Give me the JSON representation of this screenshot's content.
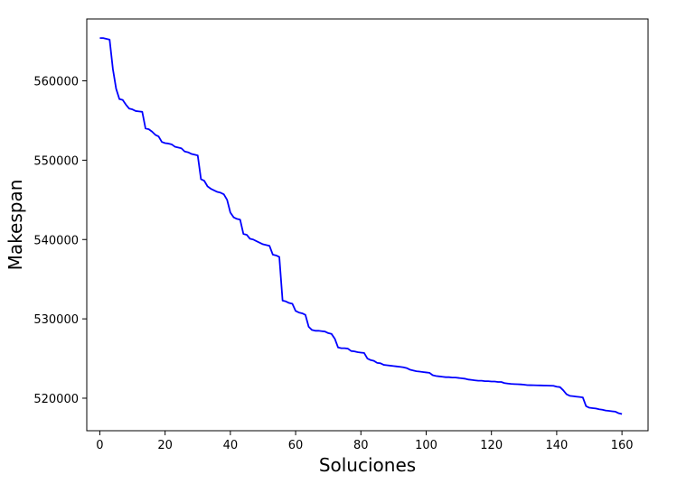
{
  "chart_data": {
    "type": "line",
    "title": "",
    "xlabel": "Soluciones",
    "ylabel": "Makespan",
    "xlim": [
      -4,
      168
    ],
    "ylim": [
      515900,
      567800
    ],
    "xticks": [
      0,
      20,
      40,
      60,
      80,
      100,
      120,
      140,
      160
    ],
    "yticks": [
      520000,
      530000,
      540000,
      550000,
      560000
    ],
    "grid": false,
    "series": [
      {
        "color": "#0000ff",
        "points": [
          [
            0,
            565400
          ],
          [
            1,
            565400
          ],
          [
            2,
            565300
          ],
          [
            3,
            565200
          ],
          [
            4,
            561500
          ],
          [
            5,
            559000
          ],
          [
            6,
            557700
          ],
          [
            7,
            557600
          ],
          [
            8,
            557000
          ],
          [
            9,
            556500
          ],
          [
            10,
            556400
          ],
          [
            11,
            556200
          ],
          [
            12,
            556150
          ],
          [
            13,
            556100
          ],
          [
            14,
            554000
          ],
          [
            15,
            553900
          ],
          [
            16,
            553600
          ],
          [
            17,
            553200
          ],
          [
            18,
            553000
          ],
          [
            19,
            552300
          ],
          [
            20,
            552150
          ],
          [
            21,
            552100
          ],
          [
            22,
            552000
          ],
          [
            23,
            551700
          ],
          [
            24,
            551600
          ],
          [
            25,
            551500
          ],
          [
            26,
            551100
          ],
          [
            27,
            551000
          ],
          [
            28,
            550800
          ],
          [
            29,
            550700
          ],
          [
            30,
            550600
          ],
          [
            31,
            547600
          ],
          [
            32,
            547400
          ],
          [
            33,
            546700
          ],
          [
            34,
            546400
          ],
          [
            35,
            546200
          ],
          [
            36,
            546000
          ],
          [
            37,
            545900
          ],
          [
            38,
            545700
          ],
          [
            39,
            545000
          ],
          [
            40,
            543400
          ],
          [
            41,
            542800
          ],
          [
            42,
            542600
          ],
          [
            43,
            542500
          ],
          [
            44,
            540700
          ],
          [
            45,
            540600
          ],
          [
            46,
            540100
          ],
          [
            47,
            540000
          ],
          [
            48,
            539800
          ],
          [
            49,
            539600
          ],
          [
            50,
            539400
          ],
          [
            51,
            539300
          ],
          [
            52,
            539200
          ],
          [
            53,
            538100
          ],
          [
            54,
            538000
          ],
          [
            55,
            537800
          ],
          [
            56,
            532300
          ],
          [
            57,
            532200
          ],
          [
            58,
            532000
          ],
          [
            59,
            531900
          ],
          [
            60,
            531000
          ],
          [
            61,
            530800
          ],
          [
            62,
            530700
          ],
          [
            63,
            530500
          ],
          [
            64,
            529000
          ],
          [
            65,
            528600
          ],
          [
            66,
            528500
          ],
          [
            67,
            528500
          ],
          [
            68,
            528450
          ],
          [
            69,
            528400
          ],
          [
            70,
            528200
          ],
          [
            71,
            528100
          ],
          [
            72,
            527500
          ],
          [
            73,
            526400
          ],
          [
            74,
            526300
          ],
          [
            75,
            526300
          ],
          [
            76,
            526250
          ],
          [
            77,
            525950
          ],
          [
            78,
            525900
          ],
          [
            79,
            525800
          ],
          [
            80,
            525750
          ],
          [
            81,
            525700
          ],
          [
            82,
            525000
          ],
          [
            83,
            524800
          ],
          [
            84,
            524700
          ],
          [
            85,
            524450
          ],
          [
            86,
            524400
          ],
          [
            87,
            524200
          ],
          [
            88,
            524150
          ],
          [
            89,
            524100
          ],
          [
            90,
            524050
          ],
          [
            91,
            524000
          ],
          [
            92,
            523950
          ],
          [
            93,
            523900
          ],
          [
            94,
            523800
          ],
          [
            95,
            523600
          ],
          [
            96,
            523500
          ],
          [
            97,
            523400
          ],
          [
            98,
            523350
          ],
          [
            99,
            523300
          ],
          [
            100,
            523250
          ],
          [
            101,
            523200
          ],
          [
            102,
            522900
          ],
          [
            103,
            522800
          ],
          [
            104,
            522750
          ],
          [
            105,
            522700
          ],
          [
            106,
            522650
          ],
          [
            107,
            522650
          ],
          [
            108,
            522600
          ],
          [
            109,
            522600
          ],
          [
            110,
            522550
          ],
          [
            111,
            522500
          ],
          [
            112,
            522450
          ],
          [
            113,
            522350
          ],
          [
            114,
            522300
          ],
          [
            115,
            522250
          ],
          [
            116,
            522200
          ],
          [
            117,
            522200
          ],
          [
            118,
            522150
          ],
          [
            119,
            522150
          ],
          [
            120,
            522100
          ],
          [
            121,
            522100
          ],
          [
            122,
            522050
          ],
          [
            123,
            522050
          ],
          [
            124,
            521900
          ],
          [
            125,
            521850
          ],
          [
            126,
            521800
          ],
          [
            127,
            521780
          ],
          [
            128,
            521760
          ],
          [
            129,
            521740
          ],
          [
            130,
            521700
          ],
          [
            131,
            521650
          ],
          [
            132,
            521640
          ],
          [
            133,
            521630
          ],
          [
            134,
            521620
          ],
          [
            135,
            521610
          ],
          [
            136,
            521600
          ],
          [
            137,
            521590
          ],
          [
            138,
            521580
          ],
          [
            139,
            521560
          ],
          [
            140,
            521450
          ],
          [
            141,
            521400
          ],
          [
            142,
            521000
          ],
          [
            143,
            520500
          ],
          [
            144,
            520300
          ],
          [
            145,
            520250
          ],
          [
            146,
            520200
          ],
          [
            147,
            520150
          ],
          [
            148,
            520100
          ],
          [
            149,
            519000
          ],
          [
            150,
            518800
          ],
          [
            151,
            518750
          ],
          [
            152,
            518700
          ],
          [
            153,
            518600
          ],
          [
            154,
            518550
          ],
          [
            155,
            518450
          ],
          [
            156,
            518400
          ],
          [
            157,
            518350
          ],
          [
            158,
            518300
          ],
          [
            159,
            518100
          ],
          [
            160,
            518000
          ]
        ]
      }
    ]
  }
}
